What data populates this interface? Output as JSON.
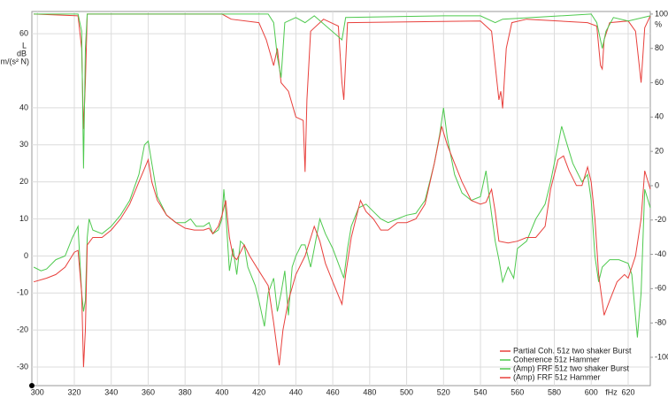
{
  "chart_data": {
    "type": "line",
    "x_label": "fHz",
    "y_label": [
      "L",
      "dB",
      "m/(s² N)"
    ],
    "y2_label": "%",
    "xlim": [
      297,
      632
    ],
    "ylim": [
      -35,
      66
    ],
    "y2lim": [
      -116.5,
      101.5
    ],
    "xticks": [
      300,
      320,
      340,
      360,
      380,
      400,
      420,
      440,
      460,
      480,
      500,
      520,
      540,
      560,
      580,
      600,
      620
    ],
    "yticks": [
      -30,
      -20,
      -10,
      0,
      10,
      20,
      30,
      40,
      60
    ],
    "y2ticks": [
      -100,
      -80,
      -60,
      -40,
      -20,
      0,
      20,
      40,
      60,
      80,
      100
    ],
    "grid": true,
    "legend": "lower right",
    "series": [
      {
        "name": "Partial Coh. 51z two shaker Burst",
        "color": "#e8403c",
        "axis": "y2",
        "x": [
          298,
          322,
          324,
          325,
          326,
          327,
          400,
          405,
          420,
          424,
          428,
          430,
          432,
          436,
          440,
          444,
          445,
          446,
          448,
          455,
          463,
          465,
          466,
          468,
          540,
          546,
          549,
          550,
          551,
          552,
          554,
          557,
          565,
          598,
          603,
          605,
          606,
          607,
          610,
          620,
          624,
          626,
          627,
          629,
          632
        ],
        "values": [
          100,
          99,
          80,
          33,
          60,
          100,
          100,
          97,
          95,
          85,
          70,
          80,
          60,
          55,
          40,
          38,
          8,
          50,
          90,
          97,
          93,
          60,
          50,
          95,
          96,
          90,
          60,
          50,
          55,
          45,
          80,
          95,
          97,
          95,
          93,
          70,
          68,
          85,
          95,
          96,
          90,
          70,
          60,
          92,
          99
        ]
      },
      {
        "name": "Coherence 51z Hammer",
        "color": "#4ec94e",
        "axis": "y2",
        "x": [
          298,
          322,
          324,
          325,
          326,
          327,
          425,
          428,
          430,
          432,
          434,
          440,
          445,
          450,
          465,
          467,
          520,
          540,
          548,
          552,
          600,
          603,
          606,
          608,
          612,
          620,
          632
        ],
        "values": [
          100,
          100,
          90,
          10,
          80,
          100,
          100,
          95,
          75,
          63,
          95,
          98,
          95,
          99,
          85,
          98,
          99,
          99,
          95,
          97,
          100,
          95,
          80,
          90,
          98,
          96,
          99
        ]
      },
      {
        "name": "(Amp) FRF 51z two shaker Burst",
        "color": "#4ec94e",
        "x": [
          298,
          302,
          305,
          310,
          315,
          319,
          322,
          324,
          325,
          326,
          327,
          328,
          330,
          335,
          340,
          345,
          350,
          355,
          358,
          360,
          362,
          365,
          370,
          375,
          380,
          383,
          386,
          390,
          393,
          395,
          398,
          400,
          401,
          402,
          404,
          406,
          408,
          410,
          412,
          414,
          418,
          420,
          423,
          425,
          428,
          430,
          432,
          434,
          436,
          438,
          440,
          443,
          445,
          448,
          450,
          453,
          456,
          460,
          463,
          466,
          468,
          470,
          474,
          478,
          482,
          486,
          490,
          495,
          500,
          505,
          510,
          515,
          518,
          520,
          522,
          526,
          530,
          535,
          540,
          543,
          545,
          548,
          550,
          552,
          555,
          558,
          560,
          565,
          570,
          575,
          578,
          582,
          584,
          587,
          590,
          595,
          598,
          600,
          602,
          604,
          606,
          610,
          615,
          620,
          622,
          625,
          627,
          629,
          632
        ],
        "values": [
          -3,
          -4,
          -3.5,
          -1,
          0,
          5,
          8,
          -10,
          -15,
          -12,
          5,
          10,
          7,
          6,
          8,
          11,
          15,
          22,
          30,
          31,
          25,
          16,
          11,
          9,
          9,
          10,
          8,
          8,
          9,
          6,
          7,
          10,
          18,
          12,
          -4,
          2,
          -5,
          4,
          3,
          -3,
          -8,
          -12,
          -19,
          -10,
          -6,
          -15,
          -10,
          -4,
          -16,
          -3,
          0,
          3,
          3,
          -3,
          2,
          10,
          6,
          2,
          -2,
          -6,
          2,
          8,
          13,
          14,
          12,
          10,
          9,
          10,
          11,
          11.5,
          15,
          25,
          33,
          40,
          32,
          22,
          17,
          15,
          16,
          23,
          15,
          4,
          -1,
          -7,
          -3,
          -6,
          2,
          4,
          10,
          14,
          20,
          30,
          35,
          30,
          25,
          20,
          22,
          15,
          0,
          -7,
          -3,
          -1,
          -1,
          -2,
          -5,
          -22,
          -10,
          18,
          13
        ]
      },
      {
        "name": "(Amp) FRF 51z Hammer",
        "color": "#e8403c",
        "x": [
          298,
          305,
          310,
          315,
          320,
          322,
          324,
          325,
          326,
          327,
          330,
          335,
          340,
          345,
          350,
          355,
          360,
          362,
          365,
          370,
          375,
          380,
          385,
          390,
          393,
          395,
          398,
          400,
          402,
          404,
          406,
          408,
          410,
          412,
          415,
          420,
          425,
          428,
          431,
          433,
          436,
          440,
          445,
          450,
          453,
          456,
          460,
          465,
          467,
          470,
          475,
          478,
          482,
          486,
          490,
          495,
          500,
          505,
          510,
          515,
          519,
          522,
          526,
          530,
          535,
          540,
          543,
          546,
          548,
          550,
          555,
          560,
          565,
          570,
          575,
          578,
          582,
          585,
          588,
          592,
          595,
          598,
          600,
          602,
          604,
          607,
          610,
          614,
          618,
          620,
          624,
          627,
          629,
          632
        ],
        "values": [
          -7,
          -6,
          -5,
          -3,
          1,
          1.5,
          -10,
          -30,
          -20,
          3,
          5,
          5,
          7,
          10,
          14,
          20,
          26,
          20,
          15,
          11,
          9,
          7.5,
          7,
          7,
          7.5,
          6,
          8,
          11,
          15,
          5,
          0,
          -1,
          1,
          3,
          0,
          -4,
          -8,
          -18,
          -29.5,
          -20,
          -12,
          -5,
          0,
          8,
          4,
          -2,
          -7,
          -13,
          -5,
          5,
          15,
          12,
          10,
          7,
          7,
          9,
          9,
          10,
          14,
          25,
          35,
          30,
          25,
          20,
          15,
          14,
          14.5,
          18,
          12,
          4,
          3.5,
          4,
          5,
          5,
          8,
          18,
          26,
          27,
          23,
          19,
          19,
          24,
          20,
          10,
          -5,
          -16,
          -12,
          -7,
          -5,
          -6,
          0,
          10,
          23,
          18
        ]
      }
    ]
  }
}
